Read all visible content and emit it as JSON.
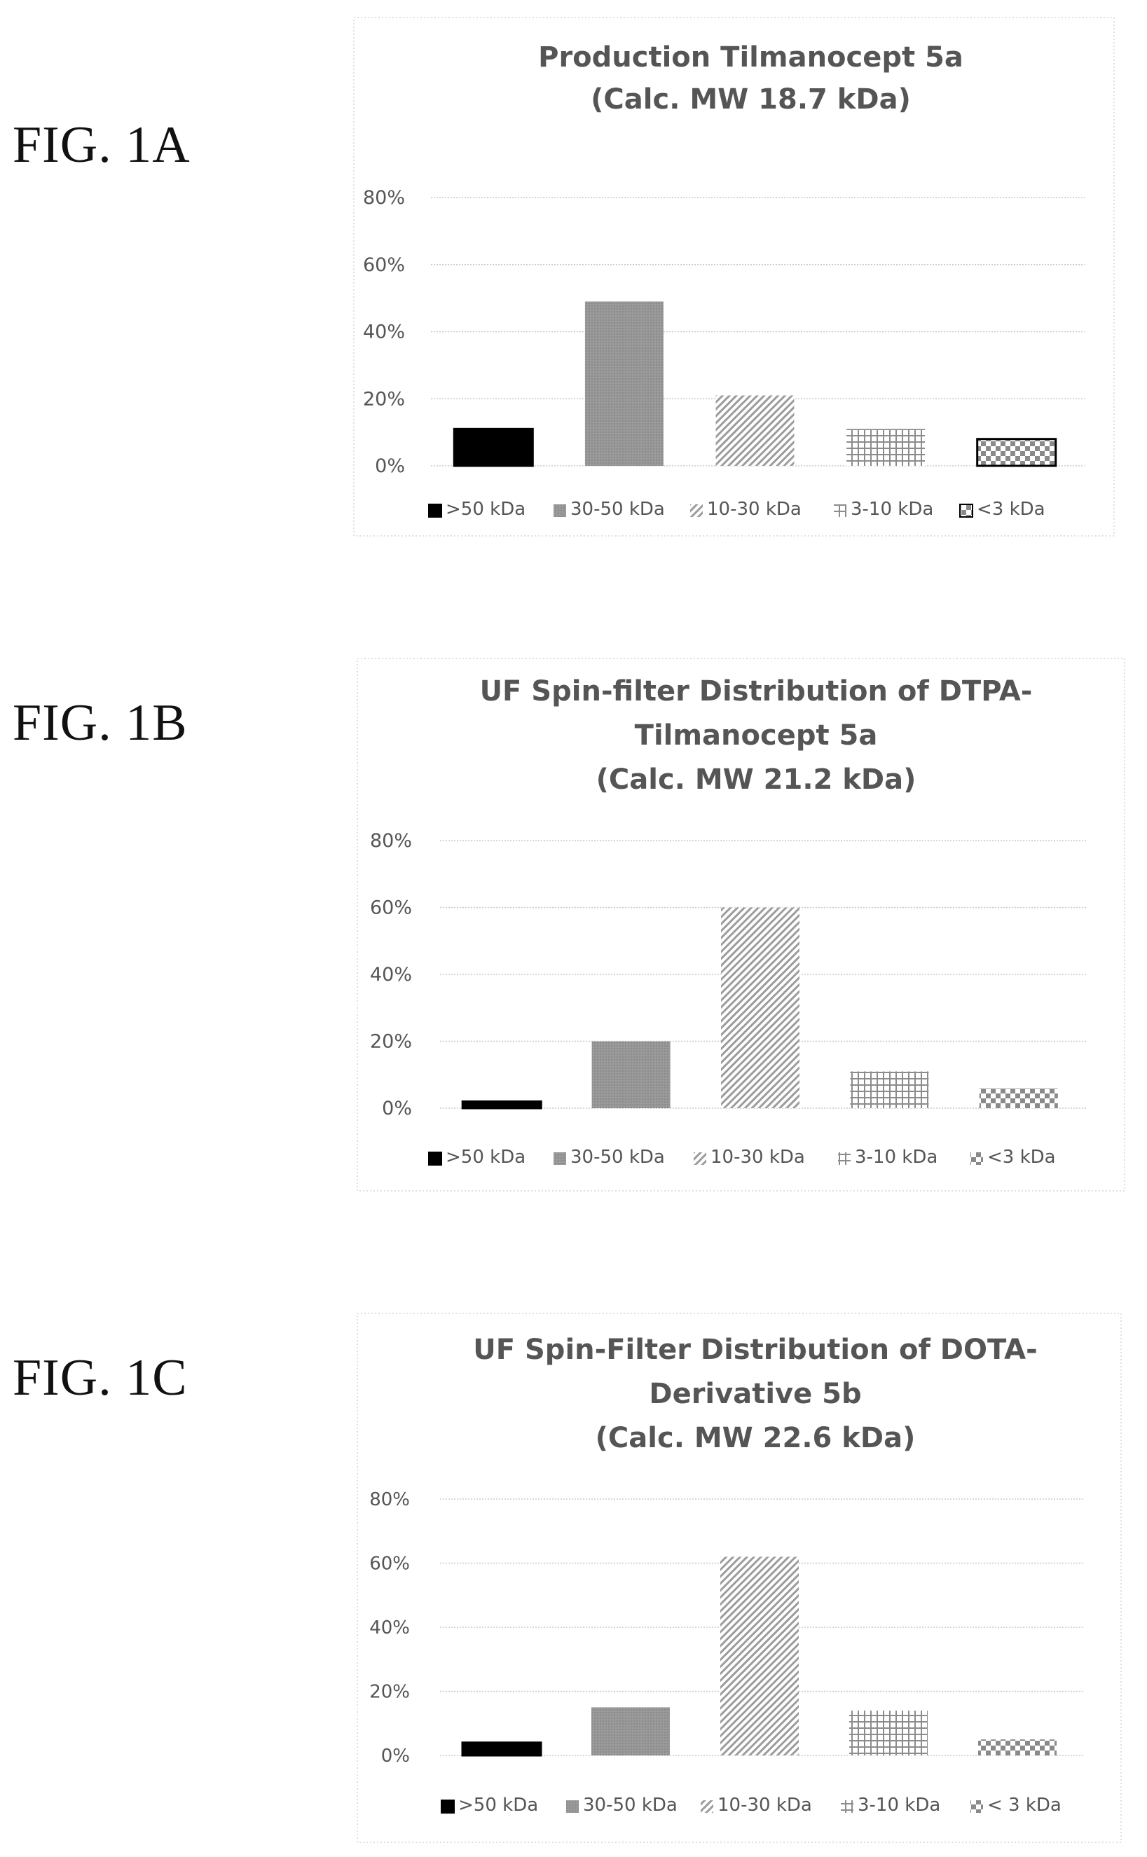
{
  "figures": [
    {
      "label": "FIG. 1A"
    },
    {
      "label": "FIG. 1B"
    },
    {
      "label": "FIG. 1C"
    }
  ],
  "chart_data": [
    {
      "type": "bar",
      "title": [
        "Production Tilmanocept 5a",
        "(Calc. MW 18.7 kDa)"
      ],
      "categories": [
        ">50 kDa",
        "30-50 kDa",
        "10-30 kDa",
        "3-10 kDa",
        "<3 kDa"
      ],
      "values": [
        11,
        49,
        21,
        11,
        8
      ],
      "yticks": [
        "0%",
        "20%",
        "40%",
        "60%",
        "80%"
      ],
      "ylim": [
        0,
        80
      ],
      "legend_position": "bottom",
      "grid": true
    },
    {
      "type": "bar",
      "title": [
        "UF Spin-filter Distribution of DTPA-",
        "Tilmanocept 5a",
        "(Calc. MW 21.2 kDa)"
      ],
      "categories": [
        ">50 kDa",
        "30-50 kDa",
        "10-30 kDa",
        "3-10 kDa",
        "<3 kDa"
      ],
      "values": [
        2,
        20,
        60,
        11,
        6
      ],
      "yticks": [
        "0%",
        "20%",
        "40%",
        "60%",
        "80%"
      ],
      "ylim": [
        0,
        80
      ],
      "legend_position": "bottom",
      "grid": true
    },
    {
      "type": "bar",
      "title": [
        "UF Spin-Filter Distribution of DOTA-",
        "Derivative 5b",
        "(Calc. MW 22.6 kDa)"
      ],
      "categories": [
        ">50 kDa",
        "30-50 kDa",
        "10-30 kDa",
        "3-10 kDa",
        "< 3 kDa"
      ],
      "values": [
        4,
        15,
        62,
        14,
        5
      ],
      "yticks": [
        "0%",
        "20%",
        "40%",
        "60%",
        "80%"
      ],
      "ylim": [
        0,
        80
      ],
      "legend_position": "bottom",
      "grid": true
    }
  ]
}
